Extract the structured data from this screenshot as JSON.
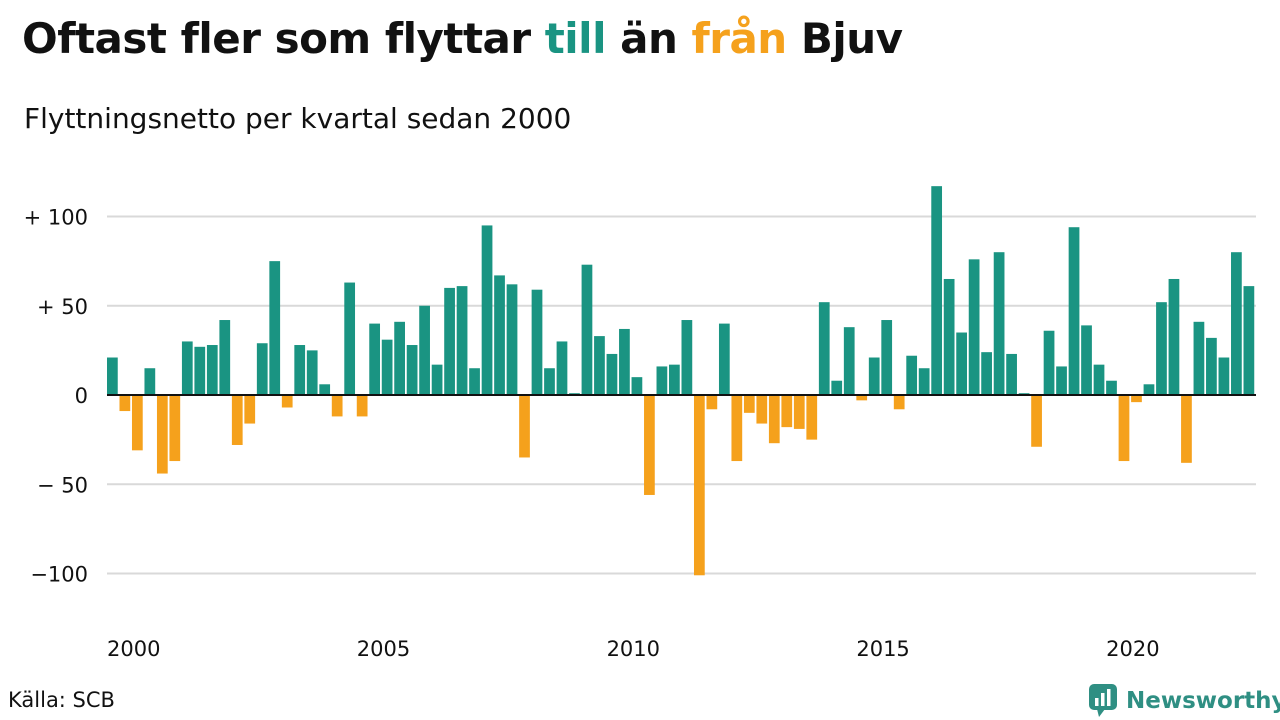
{
  "title": {
    "part1": "Oftast fler som flyttar ",
    "till": "till",
    "part2": " än ",
    "fran": "från",
    "part3": " Bjuv"
  },
  "subtitle": "Flyttningsnetto per kvartal sedan 2000",
  "source": "Källa: SCB",
  "brand": {
    "name": "Newsworthy",
    "icon": "newsworthy-logo-icon"
  },
  "colors": {
    "positive": "#1a9482",
    "negative": "#f5a11c",
    "grid": "#d9d9d9",
    "axis": "#111111",
    "brand": "#2f8f83"
  },
  "chart_data": {
    "type": "bar",
    "title": "Oftast fler som flyttar till än från Bjuv",
    "subtitle": "Flyttningsnetto per kvartal sedan 2000",
    "xlabel": "",
    "ylabel": "",
    "ylim": [
      -105,
      120
    ],
    "yticks": [
      {
        "value": 100,
        "label": "+ 100"
      },
      {
        "value": 50,
        "label": "+  50"
      },
      {
        "value": 0,
        "label": "0"
      },
      {
        "value": -50,
        "label": "− 50"
      },
      {
        "value": -100,
        "label": "−100"
      }
    ],
    "xticks": [
      {
        "year": 2000,
        "label": "2000"
      },
      {
        "year": 2005,
        "label": "2005"
      },
      {
        "year": 2010,
        "label": "2010"
      },
      {
        "year": 2015,
        "label": "2015"
      },
      {
        "year": 2020,
        "label": "2020"
      }
    ],
    "grid": true,
    "legend": "none",
    "start": "2000-Q1",
    "values": [
      21,
      -9,
      -31,
      15,
      -44,
      -37,
      30,
      27,
      28,
      42,
      -28,
      -16,
      29,
      75,
      -7,
      28,
      25,
      6,
      -12,
      63,
      -12,
      40,
      31,
      41,
      28,
      50,
      17,
      60,
      61,
      15,
      95,
      67,
      62,
      -35,
      59,
      15,
      30,
      1,
      73,
      33,
      23,
      37,
      10,
      -56,
      16,
      17,
      42,
      -101,
      -8,
      40,
      -37,
      -10,
      -16,
      -27,
      -18,
      -19,
      -25,
      52,
      8,
      38,
      -3,
      21,
      42,
      -8,
      22,
      15,
      117,
      65,
      35,
      76,
      24,
      80,
      23,
      1,
      -29,
      36,
      16,
      94,
      39,
      17,
      8,
      -37,
      -4,
      6,
      52,
      65,
      -38,
      41,
      32,
      21,
      80,
      61
    ]
  }
}
